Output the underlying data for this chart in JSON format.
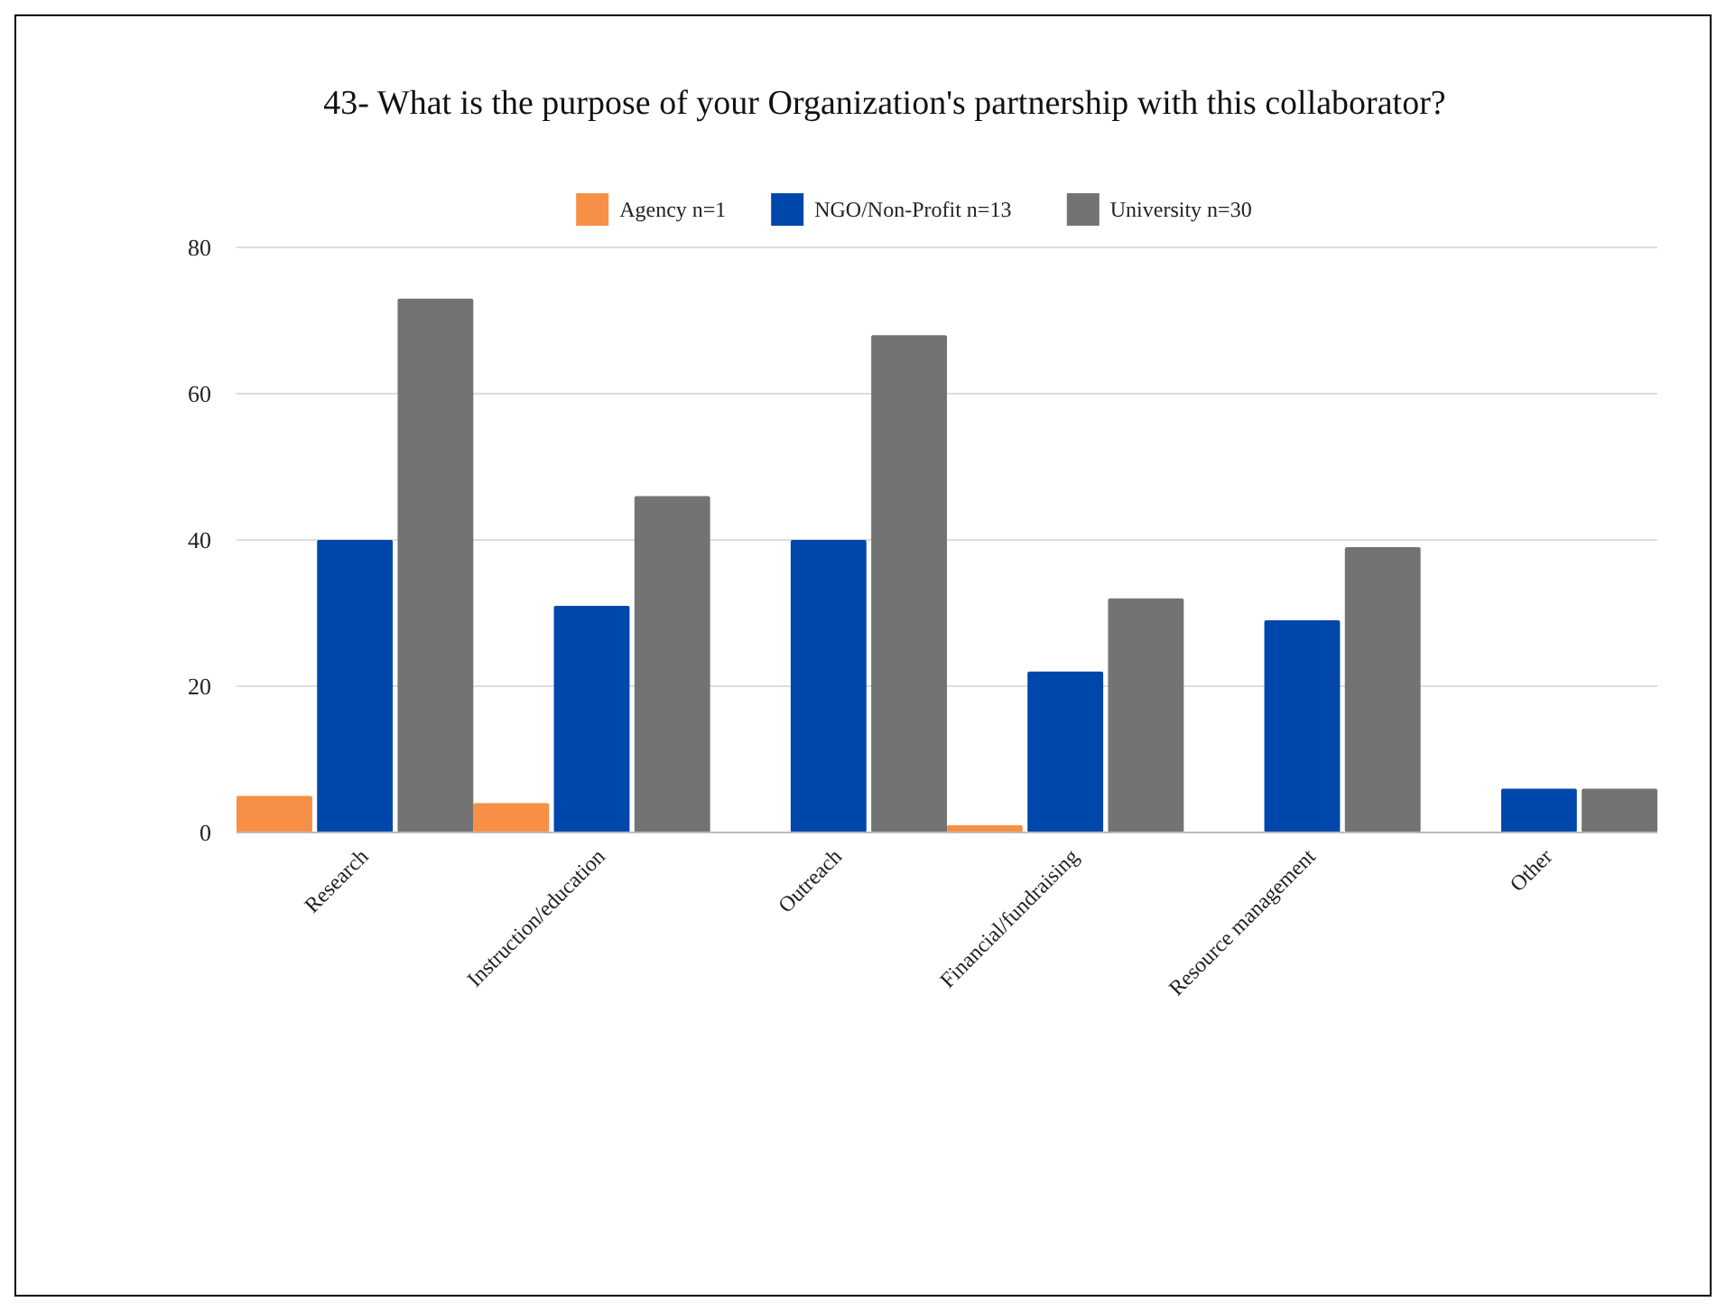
{
  "chart_data": {
    "type": "bar",
    "title": "43- What is the purpose of your Organization's partnership with this collaborator?",
    "categories": [
      "Research",
      "Instruction/education",
      "Outreach",
      "Financial/fundraising",
      "Resource management",
      "Other"
    ],
    "series": [
      {
        "name": "Agency n=1",
        "color": "#f79046",
        "values": [
          5,
          4,
          0,
          1,
          0,
          0
        ]
      },
      {
        "name": "NGO/Non-Profit n=13",
        "color": "#0047ab",
        "values": [
          40,
          31,
          40,
          22,
          29,
          6
        ]
      },
      {
        "name": "University n=30",
        "color": "#737373",
        "values": [
          73,
          46,
          68,
          32,
          39,
          6
        ]
      }
    ],
    "ylim": [
      0,
      80
    ],
    "yticks": [
      0,
      20,
      40,
      60,
      80
    ],
    "grid": "y",
    "legend": "top"
  }
}
